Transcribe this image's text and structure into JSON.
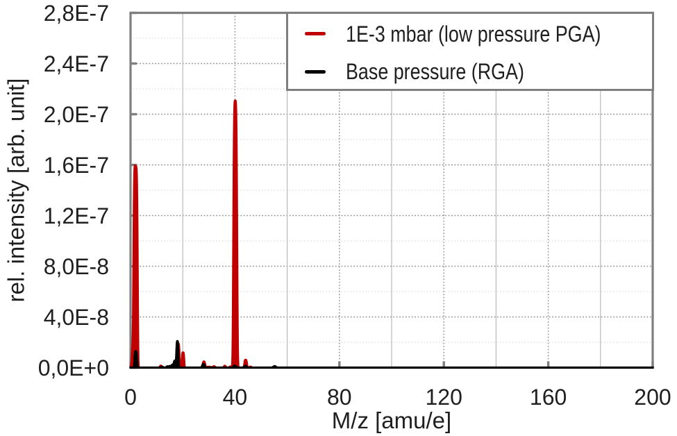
{
  "chart_data": {
    "type": "line",
    "title": "",
    "xlabel": "M/z [amu/e]",
    "ylabel": "rel. intensity [arb. unit]",
    "xlim": [
      0,
      200
    ],
    "ylim": [
      0,
      2.8e-07
    ],
    "x_ticks": {
      "values": [
        0,
        40,
        80,
        120,
        160,
        200
      ],
      "labels": [
        "0",
        "40",
        "80",
        "120",
        "160",
        "200"
      ],
      "minor_values": [
        20,
        60,
        100,
        140,
        180
      ]
    },
    "y_ticks": {
      "values": [
        0,
        4e-08,
        8e-08,
        1.2e-07,
        1.6e-07,
        2e-07,
        2.4e-07,
        2.8e-07
      ],
      "labels": [
        "0,0E+0",
        "4,0E-8",
        "8,0E-8",
        "1,2E-7",
        "1,6E-7",
        "2,0E-7",
        "2,4E-7",
        "2,8E-7"
      ],
      "minor_values": [
        2e-08,
        6e-08,
        1e-07,
        1.4e-07,
        1.8e-07,
        2.2e-07,
        2.6e-07
      ]
    },
    "grid": {
      "major_horizontal_style": "dotted",
      "minor_horizontal_style": "dotted",
      "major_vertical_style": "dotted",
      "minor_vertical_style": "solid",
      "major_color": "#8f8f8f",
      "minor_h_color": "#c6c6c6",
      "minor_v_color": "#b9b9b9"
    },
    "frame_color": "#7f7f7f",
    "axis_color": "#000000",
    "legend": {
      "position": "top-right",
      "entries": [
        {
          "label": "1E-3 mbar (low pressure PGA)",
          "color": "#c00000"
        },
        {
          "label": "Base pressure (RGA)",
          "color": "#000000"
        }
      ]
    },
    "series": [
      {
        "name": "1E-3 mbar (low pressure PGA)",
        "color": "#c00000",
        "peaks": [
          [
            0.9,
            2.2e-08,
            0.45,
            1
          ],
          [
            1.95,
            1.59e-07,
            0.85,
            2.5
          ],
          [
            11.6,
            1.6e-09,
            0.45,
            1
          ],
          [
            14.4,
            1e-09,
            0.5,
            1
          ],
          [
            16.0,
            1.3e-09,
            0.5,
            1
          ],
          [
            18.3,
            1.9e-08,
            0.5,
            1.8
          ],
          [
            20.1,
            1.2e-08,
            0.5,
            2
          ],
          [
            28.1,
            4.8e-09,
            0.55,
            1.5
          ],
          [
            30.0,
            7e-10,
            1.2,
            1
          ],
          [
            32.0,
            1.1e-09,
            0.5,
            1
          ],
          [
            36.1,
            1.5e-09,
            0.45,
            1
          ],
          [
            38.2,
            9e-10,
            0.45,
            1
          ],
          [
            40.1,
            2.108e-07,
            0.8,
            2
          ],
          [
            44.1,
            6.2e-09,
            0.55,
            1.8
          ],
          [
            45.9,
            8e-10,
            0.5,
            1
          ]
        ]
      },
      {
        "name": "Base pressure (RGA)",
        "color": "#000000",
        "peaks": [
          [
            2.0,
            1.3e-08,
            0.55,
            2
          ],
          [
            12.1,
            8e-10,
            0.5,
            1
          ],
          [
            14.1,
            1e-09,
            0.5,
            1
          ],
          [
            15.1,
            1.3e-09,
            0.5,
            1
          ],
          [
            16.1,
            2.4e-09,
            0.5,
            1.3
          ],
          [
            17.0,
            5.5e-09,
            0.5,
            1.5
          ],
          [
            17.95,
            2.1e-08,
            0.45,
            1.8
          ],
          [
            27.9,
            2.8e-09,
            0.6,
            1.3
          ],
          [
            39.9,
            1.7e-09,
            0.6,
            1
          ],
          [
            44.0,
            1.5e-09,
            0.6,
            1
          ],
          [
            55.2,
            1.2e-09,
            0.65,
            1
          ]
        ]
      }
    ]
  }
}
